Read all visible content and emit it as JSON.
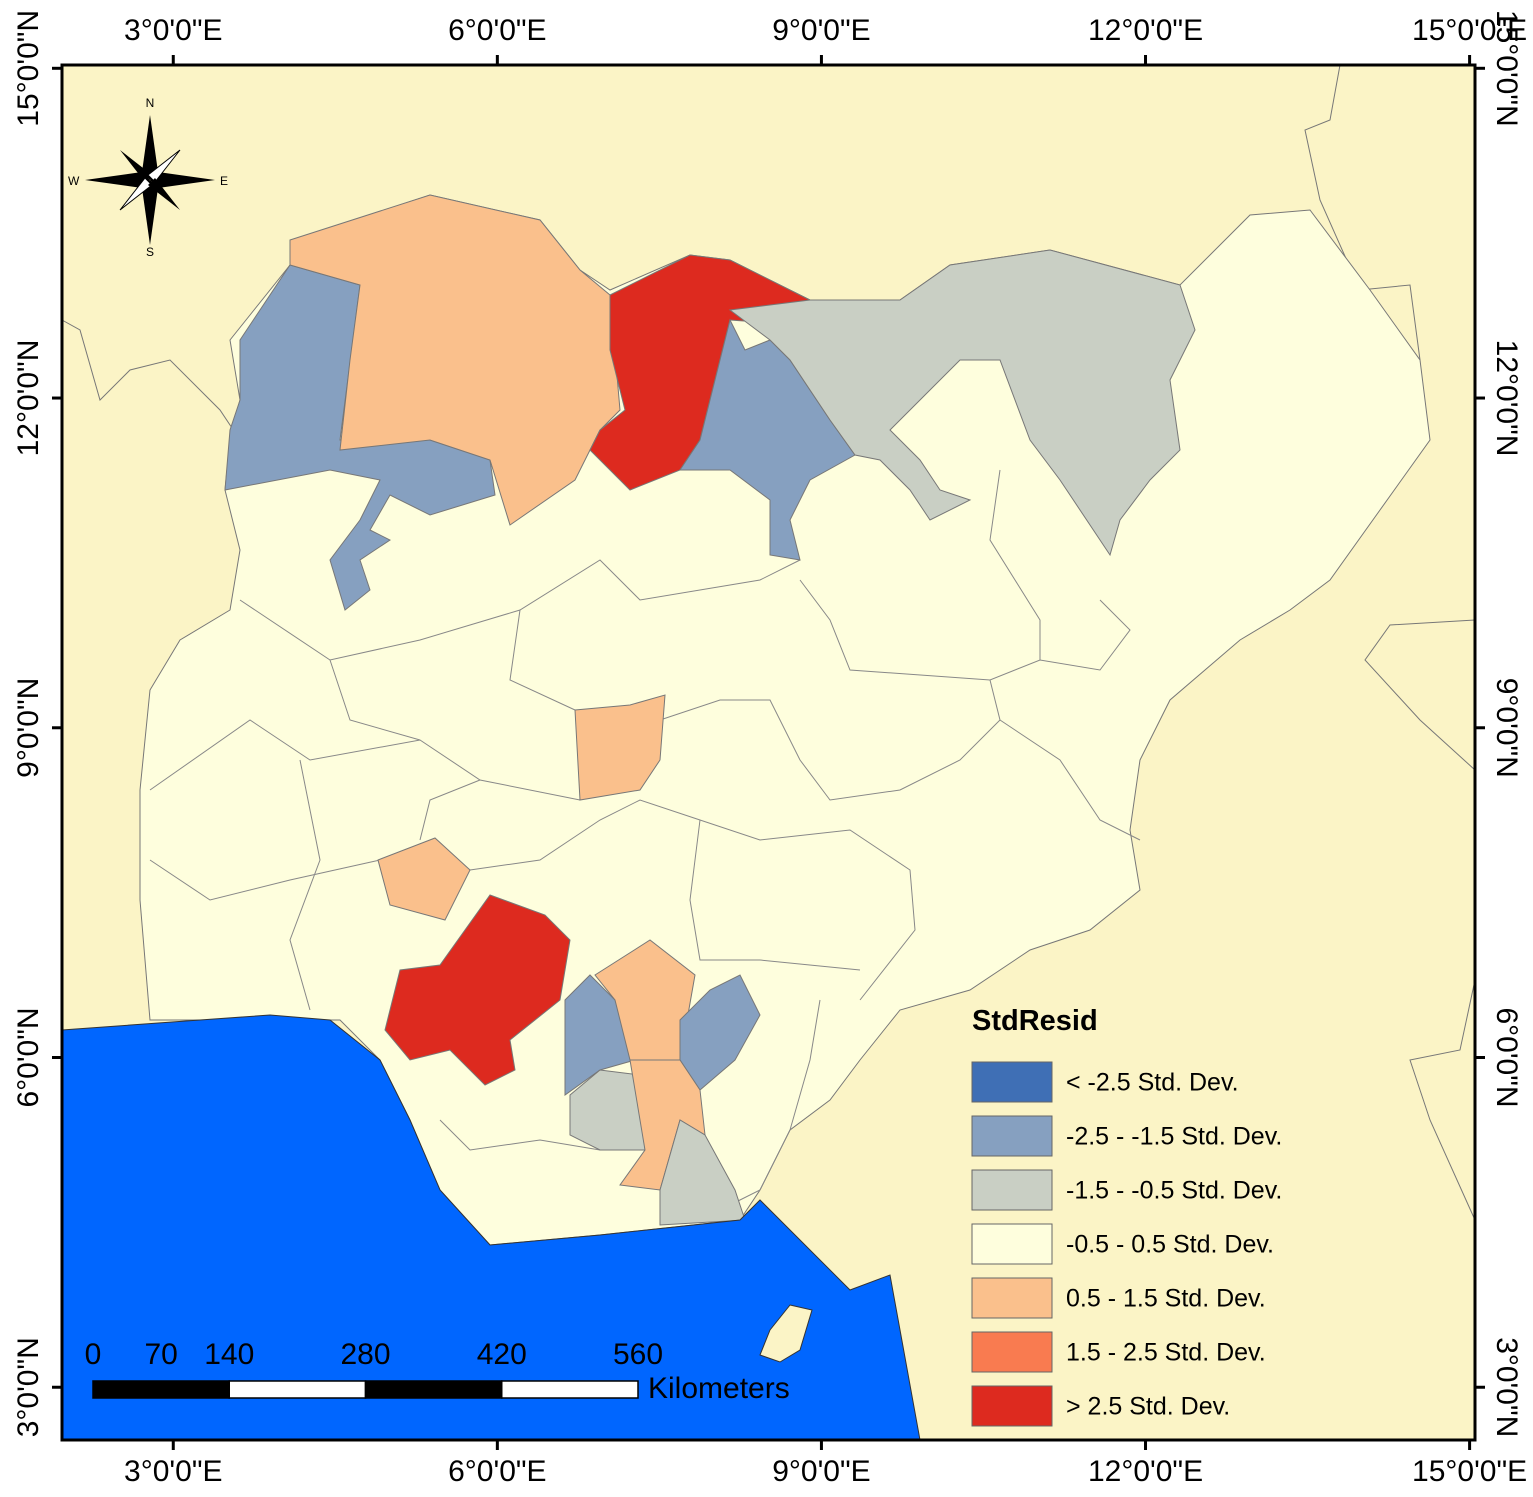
{
  "map": {
    "xlim": [
      1.97,
      15.05
    ],
    "ylim": [
      2.52,
      15.03
    ],
    "xticks": [
      {
        "value": 3,
        "label": "3°0'0\"E"
      },
      {
        "value": 6,
        "label": "6°0'0\"E"
      },
      {
        "value": 9,
        "label": "9°0'0\"E"
      },
      {
        "value": 12,
        "label": "12°0'0\"E"
      },
      {
        "value": 15,
        "label": "15°0'0\"E"
      }
    ],
    "yticks": [
      {
        "value": 3,
        "label": "3°0'0\"N"
      },
      {
        "value": 6,
        "label": "6°0'0\"N"
      },
      {
        "value": 9,
        "label": "9°0'0\"N"
      },
      {
        "value": 12,
        "label": "12°0'0\"N"
      },
      {
        "value": 15,
        "label": "15°0'0\"N"
      }
    ],
    "compass": {
      "n": "N",
      "s": "S",
      "e": "E",
      "w": "W"
    },
    "legend": {
      "title": "StdResid",
      "items": [
        {
          "label": "< -2.5 Std. Dev.",
          "color": "#3f6fb5"
        },
        {
          "label": "-2.5 - -1.5 Std. Dev.",
          "color": "#86a0c0"
        },
        {
          "label": "-1.5 - -0.5 Std. Dev.",
          "color": "#c9cfc4"
        },
        {
          "label": "-0.5 - 0.5 Std. Dev.",
          "color": "#fefedd"
        },
        {
          "label": "0.5 - 1.5 Std. Dev.",
          "color": "#fac08c"
        },
        {
          "label": "1.5 - 2.5 Std. Dev.",
          "color": "#f97b50"
        },
        {
          "label": "> 2.5 Std. Dev.",
          "color": "#dd2a1f"
        }
      ]
    },
    "scale_bar": {
      "ticks": [
        0,
        70,
        140,
        280,
        420,
        560
      ],
      "unit": "Kilometers"
    }
  }
}
